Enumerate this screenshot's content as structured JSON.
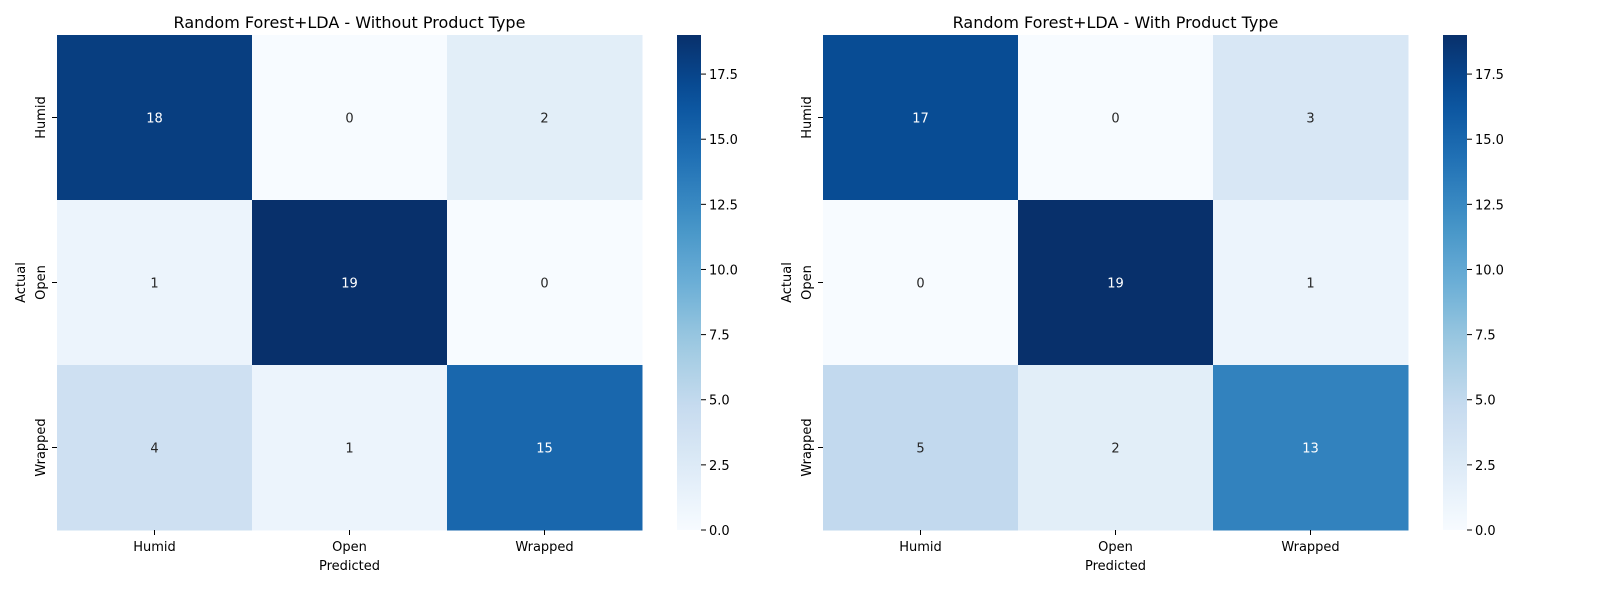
{
  "chart_data": [
    {
      "type": "heatmap",
      "title": "Random Forest+LDA - Without Product Type",
      "xlabel": "Predicted",
      "ylabel": "Actual",
      "x_categories": [
        "Humid",
        "Open",
        "Wrapped"
      ],
      "y_categories": [
        "Humid",
        "Open",
        "Wrapped"
      ],
      "values": [
        [
          18,
          0,
          2
        ],
        [
          1,
          19,
          0
        ],
        [
          4,
          1,
          15
        ]
      ],
      "colorbar": {
        "cmap": "Blues",
        "range": [
          0,
          19
        ],
        "ticks": [
          "0.0",
          "2.5",
          "5.0",
          "7.5",
          "10.0",
          "12.5",
          "15.0",
          "17.5"
        ]
      }
    },
    {
      "type": "heatmap",
      "title": "Random Forest+LDA - With Product Type",
      "xlabel": "Predicted",
      "ylabel": "Actual",
      "x_categories": [
        "Humid",
        "Open",
        "Wrapped"
      ],
      "y_categories": [
        "Humid",
        "Open",
        "Wrapped"
      ],
      "values": [
        [
          17,
          0,
          3
        ],
        [
          0,
          19,
          1
        ],
        [
          5,
          2,
          13
        ]
      ],
      "colorbar": {
        "cmap": "Blues",
        "range": [
          0,
          19
        ],
        "ticks": [
          "0.0",
          "2.5",
          "5.0",
          "7.5",
          "10.0",
          "12.5",
          "15.0",
          "17.5"
        ]
      }
    }
  ]
}
